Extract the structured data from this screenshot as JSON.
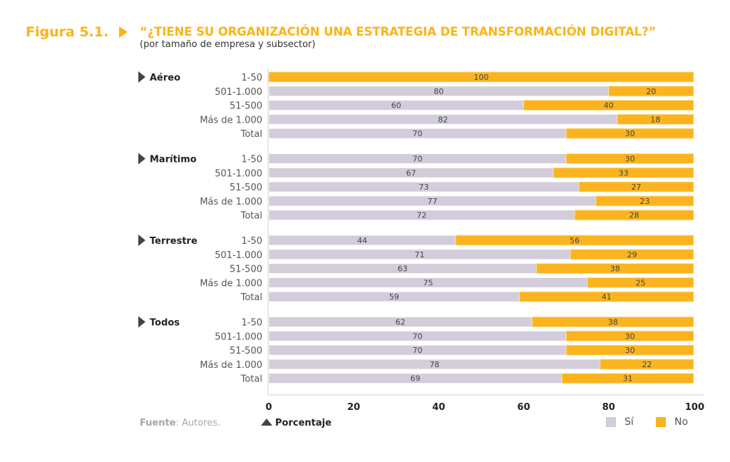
{
  "figure": {
    "label": "Figura 5.1.",
    "title": "“¿TIENE SU ORGANIZACIÓN UNA ESTRATEGIA DE TRANSFORMACIÓN DIGITAL?”",
    "subtitle": "(por tamaño de empresa y subsector)",
    "source_label": "Fuente",
    "source_text": ": Autores.",
    "colors": {
      "accent": "#fbb416",
      "si": "#d3cddb",
      "no": "#fbb41e",
      "axis": "#d0d0d0",
      "text": "#444444"
    }
  },
  "chart_data": {
    "type": "bar",
    "orientation": "horizontal",
    "stacked": true,
    "percent_stacked": true,
    "title": "¿Tiene su organización una estrategia de transformación digital?",
    "subtitle": "(por tamaño de empresa y subsector)",
    "xlabel": "Porcentaje",
    "ylabel": "",
    "xlim": [
      0,
      100
    ],
    "xticks": [
      0,
      20,
      40,
      60,
      80,
      100
    ],
    "grid": false,
    "legend": {
      "position": "bottom-right",
      "entries": [
        "Sí",
        "No"
      ]
    },
    "series_names": [
      "Sí",
      "No"
    ],
    "groups": [
      {
        "name": "Aéreo",
        "rows": [
          {
            "category": "1-50",
            "si": 0,
            "no": 100
          },
          {
            "category": "501-1.000",
            "si": 80,
            "no": 20
          },
          {
            "category": "51-500",
            "si": 60,
            "no": 40
          },
          {
            "category": "Más de 1.000",
            "si": 82,
            "no": 18
          },
          {
            "category": "Total",
            "si": 70,
            "no": 30
          }
        ]
      },
      {
        "name": "Marítimo",
        "rows": [
          {
            "category": "1-50",
            "si": 70,
            "no": 30
          },
          {
            "category": "501-1.000",
            "si": 67,
            "no": 33
          },
          {
            "category": "51-500",
            "si": 73,
            "no": 27
          },
          {
            "category": "Más de 1.000",
            "si": 77,
            "no": 23
          },
          {
            "category": "Total",
            "si": 72,
            "no": 28
          }
        ]
      },
      {
        "name": "Terrestre",
        "rows": [
          {
            "category": "1-50",
            "si": 44,
            "no": 56
          },
          {
            "category": "501-1.000",
            "si": 71,
            "no": 29
          },
          {
            "category": "51-500",
            "si": 63,
            "no": 38
          },
          {
            "category": "Más de 1.000",
            "si": 75,
            "no": 25
          },
          {
            "category": "Total",
            "si": 59,
            "no": 41
          }
        ]
      },
      {
        "name": "Todos",
        "rows": [
          {
            "category": "1-50",
            "si": 62,
            "no": 38
          },
          {
            "category": "501-1.000",
            "si": 70,
            "no": 30
          },
          {
            "category": "51-500",
            "si": 70,
            "no": 30
          },
          {
            "category": "Más de 1.000",
            "si": 78,
            "no": 22
          },
          {
            "category": "Total",
            "si": 69,
            "no": 31
          }
        ]
      }
    ]
  }
}
